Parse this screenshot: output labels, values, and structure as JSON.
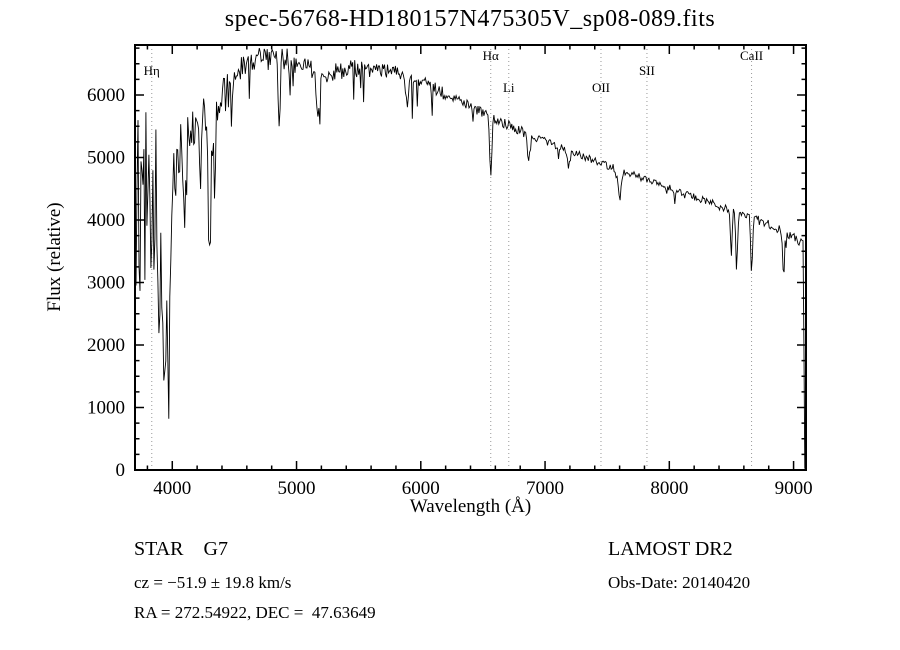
{
  "title": "spec-56768-HD180157N475305V_sp08-089.fits",
  "chart_data": {
    "type": "line",
    "title": "spec-56768-HD180157N475305V_sp08-089.fits",
    "xlabel": "Wavelength (Å)",
    "ylabel": "Flux (relative)",
    "xlim": [
      3700,
      9100
    ],
    "ylim": [
      0,
      6800
    ],
    "x_major_ticks": [
      4000,
      5000,
      6000,
      7000,
      8000,
      9000
    ],
    "y_major_ticks": [
      0,
      1000,
      2000,
      3000,
      4000,
      5000,
      6000
    ],
    "x_minor_step": 200,
    "y_minor_step": 250,
    "grid": false,
    "line_color": "#000000",
    "marker_line_color": "#999999",
    "line_markers": [
      {
        "label": "Hη",
        "wavelength": 3835,
        "row": 2
      },
      {
        "label": "Hα",
        "wavelength": 6563,
        "row": 1
      },
      {
        "label": "Li",
        "wavelength": 6708,
        "row": 3
      },
      {
        "label": "OII",
        "wavelength": 7450,
        "row": 3
      },
      {
        "label": "SII",
        "wavelength": 7820,
        "row": 2
      },
      {
        "label": "CaII",
        "wavelength": 8662,
        "row": 1
      }
    ],
    "continuum": {
      "x": [
        3700,
        3780,
        3860,
        3940,
        3990,
        4020,
        4060,
        4100,
        4160,
        4220,
        4280,
        4340,
        4400,
        4460,
        4520,
        4580,
        4640,
        4700,
        4760,
        4820,
        4880,
        4940,
        5000,
        5080,
        5160,
        5240,
        5320,
        5400,
        5480,
        5560,
        5640,
        5720,
        5800,
        5880,
        5960,
        6040,
        6120,
        6200,
        6280,
        6360,
        6440,
        6520,
        6600,
        6680,
        6760,
        6840,
        6920,
        7000,
        7100,
        7200,
        7300,
        7400,
        7500,
        7600,
        7700,
        7800,
        7900,
        8000,
        8100,
        8200,
        8300,
        8400,
        8500,
        8600,
        8700,
        8800,
        8900,
        9000,
        9050,
        9078,
        9090
      ],
      "y": [
        4200,
        4450,
        4350,
        4350,
        4400,
        4900,
        5250,
        5450,
        5550,
        5600,
        5650,
        5750,
        5900,
        6150,
        6350,
        6480,
        6550,
        6600,
        6620,
        6620,
        6600,
        6560,
        6500,
        6430,
        6370,
        6350,
        6380,
        6420,
        6430,
        6430,
        6420,
        6390,
        6370,
        6300,
        6230,
        6160,
        6100,
        6020,
        5940,
        5860,
        5780,
        5700,
        5620,
        5540,
        5460,
        5390,
        5320,
        5260,
        5180,
        5100,
        5030,
        4950,
        4870,
        4800,
        4730,
        4660,
        4580,
        4510,
        4440,
        4370,
        4300,
        4230,
        4160,
        4080,
        4010,
        3930,
        3840,
        3720,
        3660,
        3620,
        80
      ]
    },
    "absorption_features": [
      {
        "center": 3835,
        "depth": 1600,
        "sigma": 10
      },
      {
        "center": 3890,
        "depth": 1400,
        "sigma": 9
      },
      {
        "center": 3935,
        "depth": 2400,
        "sigma": 10
      },
      {
        "center": 3968,
        "depth": 3100,
        "sigma": 11
      },
      {
        "center": 4102,
        "depth": 1500,
        "sigma": 10
      },
      {
        "center": 4227,
        "depth": 800,
        "sigma": 7
      },
      {
        "center": 4300,
        "depth": 2400,
        "sigma": 11
      },
      {
        "center": 4340,
        "depth": 1100,
        "sigma": 9
      },
      {
        "center": 4861,
        "depth": 1000,
        "sigma": 9
      },
      {
        "center": 5175,
        "depth": 750,
        "sigma": 13
      },
      {
        "center": 5890,
        "depth": 550,
        "sigma": 9
      },
      {
        "center": 6563,
        "depth": 950,
        "sigma": 9
      },
      {
        "center": 6870,
        "depth": 420,
        "sigma": 10
      },
      {
        "center": 7190,
        "depth": 260,
        "sigma": 11
      },
      {
        "center": 7600,
        "depth": 480,
        "sigma": 12
      },
      {
        "center": 8498,
        "depth": 700,
        "sigma": 7
      },
      {
        "center": 8542,
        "depth": 900,
        "sigma": 7
      },
      {
        "center": 8662,
        "depth": 850,
        "sigma": 7
      },
      {
        "center": 8920,
        "depth": 800,
        "sigma": 7
      }
    ],
    "noise_bands": [
      {
        "from": 3700,
        "to": 3995,
        "amplitude": 1500
      },
      {
        "from": 3995,
        "to": 4150,
        "amplitude": 600
      },
      {
        "from": 4150,
        "to": 4500,
        "amplitude": 350
      },
      {
        "from": 4500,
        "to": 5000,
        "amplitude": 190
      },
      {
        "from": 5000,
        "to": 5600,
        "amplitude": 150
      },
      {
        "from": 5600,
        "to": 6200,
        "amplitude": 110
      },
      {
        "from": 6200,
        "to": 6900,
        "amplitude": 80
      },
      {
        "from": 6900,
        "to": 7600,
        "amplitude": 60
      },
      {
        "from": 7600,
        "to": 8400,
        "amplitude": 55
      },
      {
        "from": 8400,
        "to": 9100,
        "amplitude": 70
      }
    ],
    "spike_bands": [
      {
        "from": 4400,
        "to": 6200,
        "probability": 0.055,
        "max_depth": 650
      },
      {
        "from": 6200,
        "to": 9000,
        "probability": 0.03,
        "max_depth": 260
      }
    ],
    "sample_step": 8,
    "noise_seed": 12
  },
  "annotations": {
    "class_and_subclass": "STAR    G7",
    "survey": "LAMOST DR2",
    "cz": "cz = −51.9 ± 19.8 km/s",
    "obs_date": "Obs-Date: 20140420",
    "ra_dec": "RA = 272.54922, DEC =  47.63649"
  }
}
